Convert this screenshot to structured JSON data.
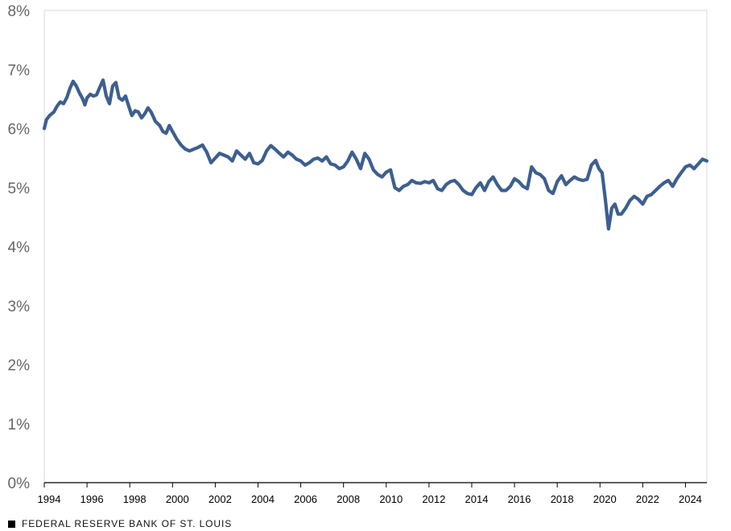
{
  "colors": {
    "line": "#3d5f8f",
    "plot_border": "#d9d9d9",
    "axis": "#000000",
    "y_tick_text": "#666666",
    "x_tick_text": "#000000",
    "background": "#ffffff"
  },
  "footer": {
    "icon": "black-square-icon",
    "text": "FEDERAL RESERVE BANK OF ST. LOUIS"
  },
  "chart_data": {
    "type": "line",
    "title": "",
    "xlabel": "",
    "ylabel": "",
    "xlim": [
      1994,
      2025
    ],
    "ylim": [
      0,
      8
    ],
    "grid": false,
    "legend": "none",
    "y_ticks": [
      {
        "value": 0,
        "label": "0%"
      },
      {
        "value": 1,
        "label": "1%"
      },
      {
        "value": 2,
        "label": "2%"
      },
      {
        "value": 3,
        "label": "3%"
      },
      {
        "value": 4,
        "label": "4%"
      },
      {
        "value": 5,
        "label": "5%"
      },
      {
        "value": 6,
        "label": "6%"
      },
      {
        "value": 7,
        "label": "7%"
      },
      {
        "value": 8,
        "label": "8%"
      }
    ],
    "x_ticks": [
      {
        "value": 1994,
        "label": "1994"
      },
      {
        "value": 1996,
        "label": "1996"
      },
      {
        "value": 1998,
        "label": "1998"
      },
      {
        "value": 2000,
        "label": "2000"
      },
      {
        "value": 2002,
        "label": "2002"
      },
      {
        "value": 2004,
        "label": "2004"
      },
      {
        "value": 2006,
        "label": "2006"
      },
      {
        "value": 2008,
        "label": "2008"
      },
      {
        "value": 2010,
        "label": "2010"
      },
      {
        "value": 2012,
        "label": "2012"
      },
      {
        "value": 2014,
        "label": "2014"
      },
      {
        "value": 2016,
        "label": "2016"
      },
      {
        "value": 2018,
        "label": "2018"
      },
      {
        "value": 2020,
        "label": "2020"
      },
      {
        "value": 2022,
        "label": "2022"
      },
      {
        "value": 2024,
        "label": "2024"
      }
    ],
    "series": [
      {
        "x": [
          1994.0,
          1994.1,
          1994.25,
          1994.45,
          1994.6,
          1994.75,
          1994.9,
          1995.05,
          1995.2,
          1995.35,
          1995.5,
          1995.65,
          1995.8,
          1995.9,
          1996.0,
          1996.15,
          1996.3,
          1996.45,
          1996.6,
          1996.75,
          1996.9,
          1997.05,
          1997.2,
          1997.35,
          1997.5,
          1997.65,
          1997.8,
          1997.95,
          1998.1,
          1998.25,
          1998.4,
          1998.55,
          1998.7,
          1998.85,
          1999.0,
          1999.2,
          1999.4,
          1999.55,
          1999.7,
          1999.85,
          2000.0,
          2000.2,
          2000.4,
          2000.6,
          2000.8,
          2001.0,
          2001.2,
          2001.4,
          2001.6,
          2001.8,
          2002.0,
          2002.2,
          2002.4,
          2002.6,
          2002.8,
          2003.0,
          2003.2,
          2003.4,
          2003.6,
          2003.8,
          2004.0,
          2004.2,
          2004.4,
          2004.6,
          2004.8,
          2005.0,
          2005.2,
          2005.4,
          2005.6,
          2005.8,
          2006.0,
          2006.2,
          2006.4,
          2006.6,
          2006.8,
          2007.0,
          2007.2,
          2007.4,
          2007.6,
          2007.8,
          2008.0,
          2008.2,
          2008.4,
          2008.6,
          2008.8,
          2009.0,
          2009.2,
          2009.4,
          2009.6,
          2009.8,
          2010.0,
          2010.2,
          2010.4,
          2010.6,
          2010.8,
          2011.0,
          2011.2,
          2011.4,
          2011.6,
          2011.8,
          2012.0,
          2012.2,
          2012.4,
          2012.6,
          2012.8,
          2013.0,
          2013.2,
          2013.4,
          2013.6,
          2013.8,
          2014.0,
          2014.2,
          2014.4,
          2014.6,
          2014.8,
          2015.0,
          2015.2,
          2015.4,
          2015.6,
          2015.8,
          2016.0,
          2016.2,
          2016.4,
          2016.6,
          2016.8,
          2017.0,
          2017.2,
          2017.4,
          2017.6,
          2017.8,
          2018.0,
          2018.2,
          2018.4,
          2018.6,
          2018.8,
          2019.0,
          2019.2,
          2019.4,
          2019.6,
          2019.8,
          2019.95,
          2020.1,
          2020.25,
          2020.4,
          2020.55,
          2020.7,
          2020.85,
          2021.0,
          2021.2,
          2021.4,
          2021.6,
          2021.8,
          2022.0,
          2022.2,
          2022.4,
          2022.6,
          2022.8,
          2023.0,
          2023.2,
          2023.4,
          2023.6,
          2023.8,
          2024.0,
          2024.2,
          2024.4,
          2024.6,
          2024.8,
          2025.0
        ],
        "y": [
          6.0,
          6.15,
          6.22,
          6.28,
          6.38,
          6.45,
          6.42,
          6.52,
          6.68,
          6.8,
          6.72,
          6.6,
          6.5,
          6.4,
          6.52,
          6.58,
          6.55,
          6.57,
          6.7,
          6.82,
          6.55,
          6.42,
          6.72,
          6.78,
          6.52,
          6.48,
          6.55,
          6.38,
          6.22,
          6.3,
          6.28,
          6.18,
          6.25,
          6.35,
          6.28,
          6.12,
          6.05,
          5.95,
          5.92,
          6.05,
          5.95,
          5.82,
          5.72,
          5.65,
          5.62,
          5.65,
          5.68,
          5.72,
          5.6,
          5.42,
          5.5,
          5.58,
          5.55,
          5.52,
          5.45,
          5.62,
          5.55,
          5.48,
          5.58,
          5.42,
          5.4,
          5.46,
          5.62,
          5.71,
          5.65,
          5.58,
          5.52,
          5.6,
          5.55,
          5.48,
          5.45,
          5.38,
          5.42,
          5.48,
          5.5,
          5.45,
          5.52,
          5.4,
          5.38,
          5.32,
          5.35,
          5.45,
          5.6,
          5.48,
          5.32,
          5.58,
          5.48,
          5.3,
          5.22,
          5.18,
          5.26,
          5.3,
          5.0,
          4.95,
          5.02,
          5.05,
          5.12,
          5.08,
          5.07,
          5.1,
          5.08,
          5.12,
          4.98,
          4.95,
          5.05,
          5.1,
          5.12,
          5.05,
          4.95,
          4.9,
          4.88,
          5.0,
          5.08,
          4.95,
          5.1,
          5.18,
          5.05,
          4.95,
          4.95,
          5.02,
          5.15,
          5.1,
          5.02,
          4.98,
          5.35,
          5.25,
          5.22,
          5.15,
          4.95,
          4.9,
          5.1,
          5.2,
          5.05,
          5.12,
          5.18,
          5.14,
          5.12,
          5.14,
          5.38,
          5.46,
          5.32,
          5.25,
          4.8,
          4.3,
          4.65,
          4.72,
          4.55,
          4.55,
          4.65,
          4.78,
          4.85,
          4.8,
          4.72,
          4.85,
          4.88,
          4.95,
          5.02,
          5.08,
          5.12,
          5.02,
          5.15,
          5.25,
          5.35,
          5.38,
          5.32,
          5.4,
          5.48,
          5.45
        ]
      }
    ]
  }
}
